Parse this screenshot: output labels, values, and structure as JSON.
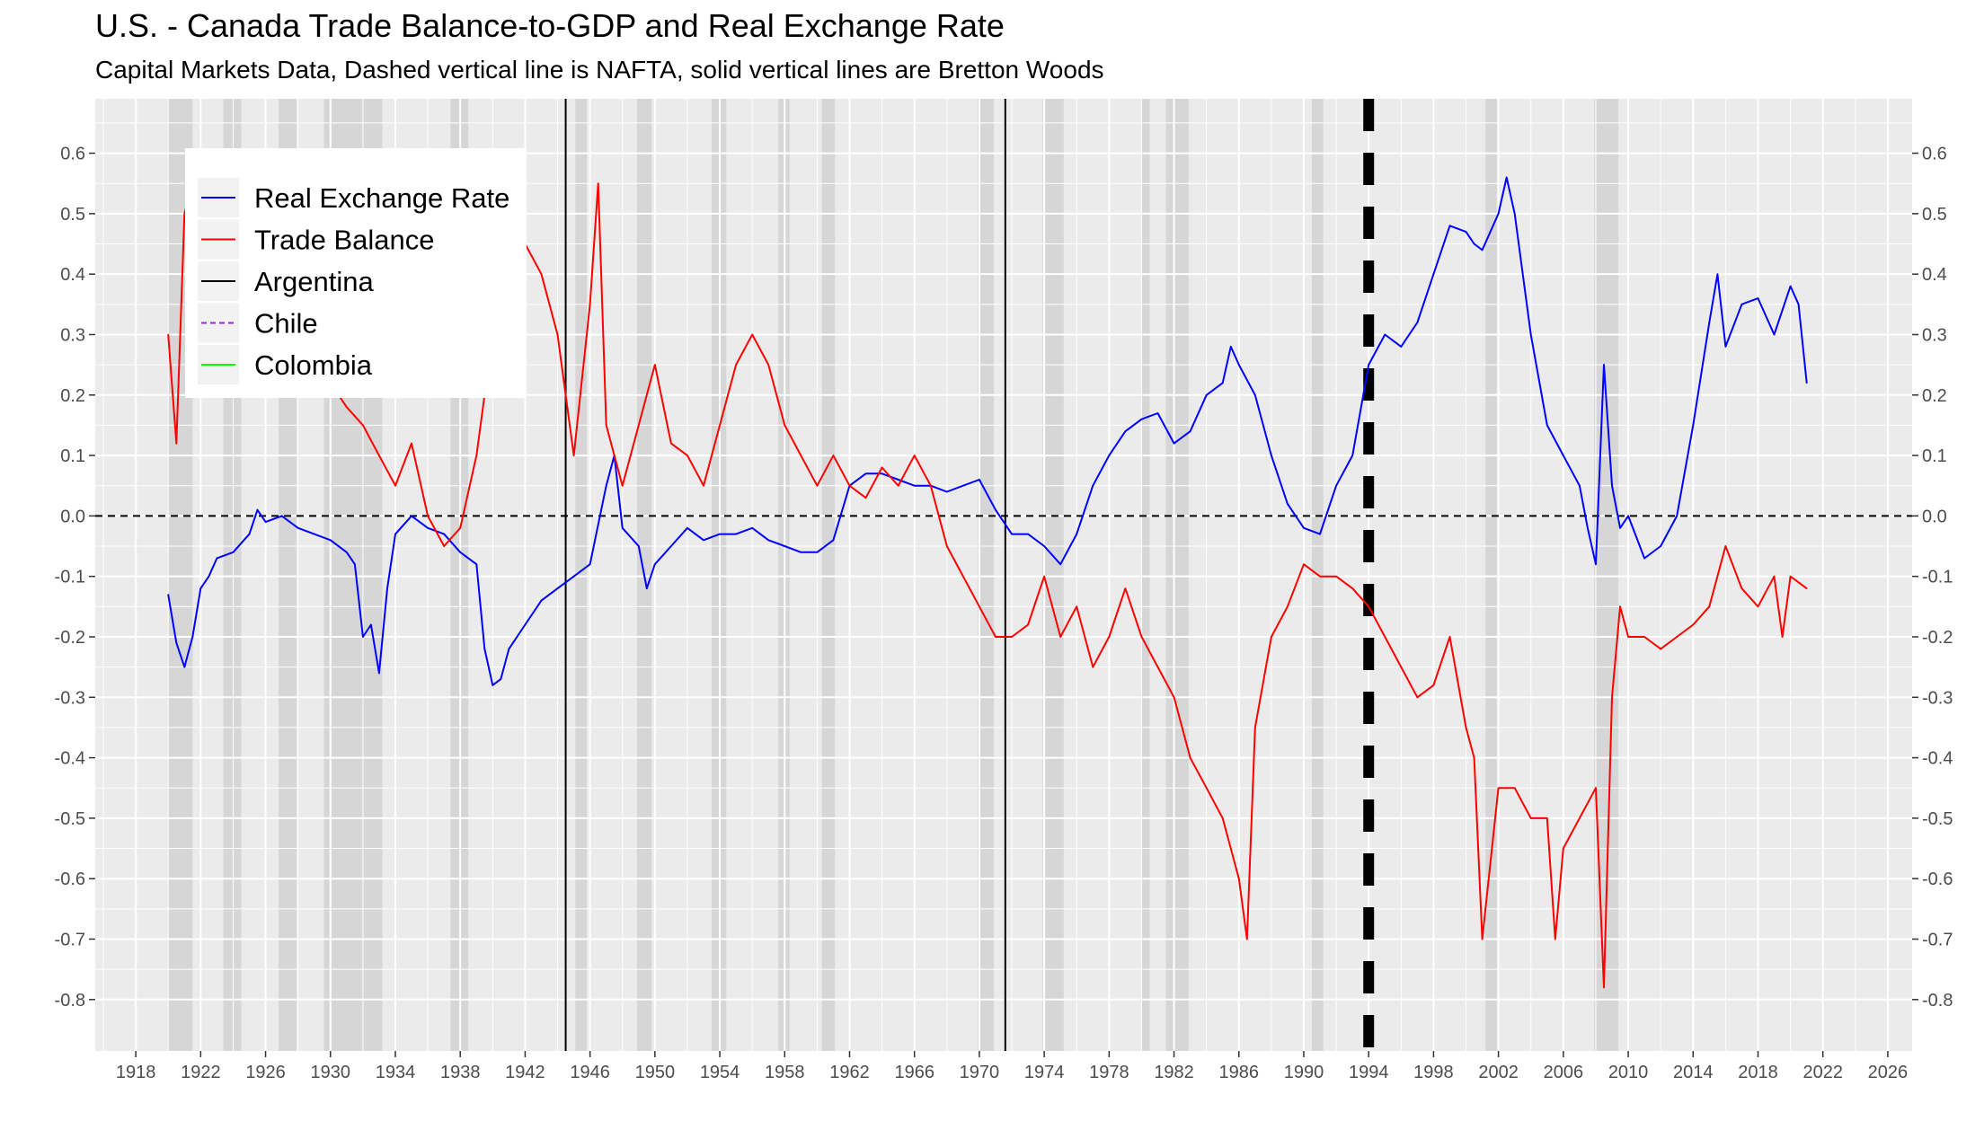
{
  "chart_data": {
    "type": "line",
    "title": "U.S. - Canada Trade Balance-to-GDP and Real Exchange Rate",
    "subtitle": "Capital Markets Data, Dashed vertical line is NAFTA, solid vertical lines are Bretton Woods",
    "xlabel": "",
    "ylabel": "",
    "xlim": [
      1915.5,
      2027.5
    ],
    "ylim": [
      -0.885,
      0.69
    ],
    "x_ticks": [
      1918,
      1922,
      1926,
      1930,
      1934,
      1938,
      1942,
      1946,
      1950,
      1954,
      1958,
      1962,
      1966,
      1970,
      1974,
      1978,
      1982,
      1986,
      1990,
      1994,
      1998,
      2002,
      2006,
      2010,
      2014,
      2018,
      2022,
      2026
    ],
    "y_ticks": [
      -0.8,
      -0.7,
      -0.6,
      -0.5,
      -0.4,
      -0.3,
      -0.2,
      -0.1,
      0.0,
      0.1,
      0.2,
      0.3,
      0.4,
      0.5,
      0.6
    ],
    "y_tick_labels": [
      "-0.8",
      "-0.7",
      "-0.6",
      "-0.5",
      "-0.4",
      "-0.3",
      "-0.2",
      "-0.1",
      "0.0",
      "0.1",
      "0.2",
      "0.3",
      "0.4",
      "0.5",
      "0.6"
    ],
    "grid": true,
    "secondary_y_axis": true,
    "legend": {
      "placement": "top-left",
      "entries": [
        {
          "label": "Real Exchange Rate",
          "color": "#0000ff",
          "style": "solid"
        },
        {
          "label": "Trade Balance",
          "color": "#ff0000",
          "style": "solid"
        },
        {
          "label": "Argentina",
          "color": "#000000",
          "style": "solid"
        },
        {
          "label": "Chile",
          "color": "#a020f0",
          "style": "dashed"
        },
        {
          "label": "Colombia",
          "color": "#00ff00",
          "style": "solid"
        }
      ]
    },
    "recession_bands": [
      [
        1920.0,
        1921.5
      ],
      [
        1923.4,
        1924.5
      ],
      [
        1926.8,
        1927.9
      ],
      [
        1929.6,
        1933.2
      ],
      [
        1937.4,
        1938.5
      ],
      [
        1945.1,
        1945.8
      ],
      [
        1948.9,
        1949.8
      ],
      [
        1953.5,
        1954.4
      ],
      [
        1957.6,
        1958.3
      ],
      [
        1960.3,
        1961.1
      ],
      [
        1969.9,
        1970.9
      ],
      [
        1973.9,
        1975.2
      ],
      [
        1980.0,
        1980.5
      ],
      [
        1981.5,
        1982.9
      ],
      [
        1990.5,
        1991.2
      ],
      [
        2001.2,
        2001.9
      ],
      [
        2007.9,
        2009.4
      ]
    ],
    "reference_lines": [
      {
        "type": "horizontal",
        "y": 0.0,
        "style": "dashed",
        "color": "#000000"
      },
      {
        "type": "vertical",
        "x": 1944.5,
        "style": "solid",
        "color": "#000000",
        "label": "Bretton Woods"
      },
      {
        "type": "vertical",
        "x": 1971.6,
        "style": "solid",
        "color": "#000000",
        "label": "Bretton Woods"
      },
      {
        "type": "vertical",
        "x": 1994.0,
        "style": "dashed",
        "color": "#000000",
        "label": "NAFTA"
      }
    ],
    "series": [
      {
        "name": "Real Exchange Rate",
        "color": "#0000ff",
        "x": [
          1920.0,
          1920.5,
          1921.0,
          1921.5,
          1922.0,
          1922.5,
          1923.0,
          1924.0,
          1925.0,
          1925.5,
          1926.0,
          1927.0,
          1928.0,
          1929.0,
          1930.0,
          1931.0,
          1931.5,
          1932.0,
          1932.5,
          1933.0,
          1933.5,
          1934.0,
          1935.0,
          1936.0,
          1937.0,
          1938.0,
          1939.0,
          1939.5,
          1940.0,
          1940.5,
          1941.0,
          1942.0,
          1943.0,
          1944.0,
          1945.0,
          1946.0,
          1947.0,
          1947.5,
          1948.0,
          1949.0,
          1949.5,
          1950.0,
          1951.0,
          1952.0,
          1953.0,
          1954.0,
          1955.0,
          1956.0,
          1957.0,
          1958.0,
          1959.0,
          1960.0,
          1961.0,
          1962.0,
          1963.0,
          1964.0,
          1965.0,
          1966.0,
          1967.0,
          1968.0,
          1969.0,
          1970.0,
          1971.0,
          1972.0,
          1973.0,
          1974.0,
          1975.0,
          1976.0,
          1977.0,
          1978.0,
          1979.0,
          1980.0,
          1981.0,
          1982.0,
          1983.0,
          1984.0,
          1985.0,
          1985.5,
          1986.0,
          1987.0,
          1988.0,
          1989.0,
          1990.0,
          1991.0,
          1992.0,
          1993.0,
          1994.0,
          1995.0,
          1996.0,
          1997.0,
          1998.0,
          1999.0,
          2000.0,
          2000.5,
          2001.0,
          2002.0,
          2002.5,
          2003.0,
          2004.0,
          2005.0,
          2006.0,
          2007.0,
          2007.5,
          2008.0,
          2008.5,
          2009.0,
          2009.5,
          2010.0,
          2011.0,
          2012.0,
          2013.0,
          2014.0,
          2015.0,
          2015.5,
          2016.0,
          2017.0,
          2018.0,
          2019.0,
          2020.0,
          2020.5,
          2021.0
        ],
        "values": [
          -0.13,
          -0.21,
          -0.25,
          -0.2,
          -0.12,
          -0.1,
          -0.07,
          -0.06,
          -0.03,
          0.01,
          -0.01,
          0.0,
          -0.02,
          -0.03,
          -0.04,
          -0.06,
          -0.08,
          -0.2,
          -0.18,
          -0.26,
          -0.12,
          -0.03,
          0.0,
          -0.02,
          -0.03,
          -0.06,
          -0.08,
          -0.22,
          -0.28,
          -0.27,
          -0.22,
          -0.18,
          -0.14,
          -0.12,
          -0.1,
          -0.08,
          0.05,
          0.1,
          -0.02,
          -0.05,
          -0.12,
          -0.08,
          -0.05,
          -0.02,
          -0.04,
          -0.03,
          -0.03,
          -0.02,
          -0.04,
          -0.05,
          -0.06,
          -0.06,
          -0.04,
          0.05,
          0.07,
          0.07,
          0.06,
          0.05,
          0.05,
          0.04,
          0.05,
          0.06,
          0.01,
          -0.03,
          -0.03,
          -0.05,
          -0.08,
          -0.03,
          0.05,
          0.1,
          0.14,
          0.16,
          0.17,
          0.12,
          0.14,
          0.2,
          0.22,
          0.28,
          0.25,
          0.2,
          0.1,
          0.02,
          -0.02,
          -0.03,
          0.05,
          0.1,
          0.25,
          0.3,
          0.28,
          0.32,
          0.4,
          0.48,
          0.47,
          0.45,
          0.44,
          0.5,
          0.56,
          0.5,
          0.3,
          0.15,
          0.1,
          0.05,
          -0.02,
          -0.08,
          0.25,
          0.05,
          -0.02,
          0.0,
          -0.07,
          -0.05,
          0.0,
          0.15,
          0.32,
          0.4,
          0.28,
          0.35,
          0.36,
          0.3,
          0.38,
          0.35,
          0.22
        ]
      },
      {
        "name": "Trade Balance",
        "color": "#ff0000",
        "x": [
          1920.0,
          1920.5,
          1921.0,
          1921.5,
          1922.0,
          1922.5,
          1923.0,
          1924.0,
          1925.0,
          1926.0,
          1927.0,
          1928.0,
          1929.0,
          1930.0,
          1931.0,
          1932.0,
          1933.0,
          1934.0,
          1935.0,
          1936.0,
          1937.0,
          1938.0,
          1939.0,
          1940.0,
          1941.0,
          1942.0,
          1943.0,
          1944.0,
          1945.0,
          1946.0,
          1946.5,
          1947.0,
          1948.0,
          1949.0,
          1950.0,
          1951.0,
          1952.0,
          1953.0,
          1954.0,
          1955.0,
          1956.0,
          1957.0,
          1958.0,
          1959.0,
          1960.0,
          1961.0,
          1962.0,
          1963.0,
          1964.0,
          1965.0,
          1966.0,
          1967.0,
          1968.0,
          1969.0,
          1970.0,
          1971.0,
          1972.0,
          1973.0,
          1974.0,
          1975.0,
          1976.0,
          1977.0,
          1978.0,
          1979.0,
          1980.0,
          1981.0,
          1982.0,
          1983.0,
          1984.0,
          1985.0,
          1986.0,
          1986.5,
          1987.0,
          1988.0,
          1989.0,
          1990.0,
          1991.0,
          1992.0,
          1993.0,
          1994.0,
          1995.0,
          1996.0,
          1997.0,
          1998.0,
          1999.0,
          2000.0,
          2000.5,
          2001.0,
          2002.0,
          2003.0,
          2004.0,
          2005.0,
          2005.5,
          2006.0,
          2007.0,
          2008.0,
          2008.5,
          2009.0,
          2009.5,
          2010.0,
          2011.0,
          2012.0,
          2013.0,
          2014.0,
          2015.0,
          2016.0,
          2017.0,
          2018.0,
          2019.0,
          2019.5,
          2020.0,
          2021.0
        ],
        "values": [
          0.3,
          0.12,
          0.5,
          0.55,
          0.3,
          0.25,
          0.2,
          0.45,
          0.3,
          0.25,
          0.35,
          0.28,
          0.3,
          0.22,
          0.18,
          0.15,
          0.1,
          0.05,
          0.12,
          0.0,
          -0.05,
          -0.02,
          0.1,
          0.3,
          0.35,
          0.45,
          0.4,
          0.3,
          0.1,
          0.35,
          0.55,
          0.15,
          0.05,
          0.15,
          0.25,
          0.12,
          0.1,
          0.05,
          0.15,
          0.25,
          0.3,
          0.25,
          0.15,
          0.1,
          0.05,
          0.1,
          0.05,
          0.03,
          0.08,
          0.05,
          0.1,
          0.05,
          -0.05,
          -0.1,
          -0.15,
          -0.2,
          -0.2,
          -0.18,
          -0.1,
          -0.2,
          -0.15,
          -0.25,
          -0.2,
          -0.12,
          -0.2,
          -0.25,
          -0.3,
          -0.4,
          -0.45,
          -0.5,
          -0.6,
          -0.7,
          -0.35,
          -0.2,
          -0.15,
          -0.08,
          -0.1,
          -0.1,
          -0.12,
          -0.15,
          -0.2,
          -0.25,
          -0.3,
          -0.28,
          -0.2,
          -0.35,
          -0.4,
          -0.7,
          -0.45,
          -0.45,
          -0.5,
          -0.5,
          -0.7,
          -0.55,
          -0.5,
          -0.45,
          -0.78,
          -0.3,
          -0.15,
          -0.2,
          -0.2,
          -0.22,
          -0.2,
          -0.18,
          -0.15,
          -0.05,
          -0.12,
          -0.15,
          -0.1,
          -0.2,
          -0.1,
          -0.12
        ]
      }
    ]
  }
}
